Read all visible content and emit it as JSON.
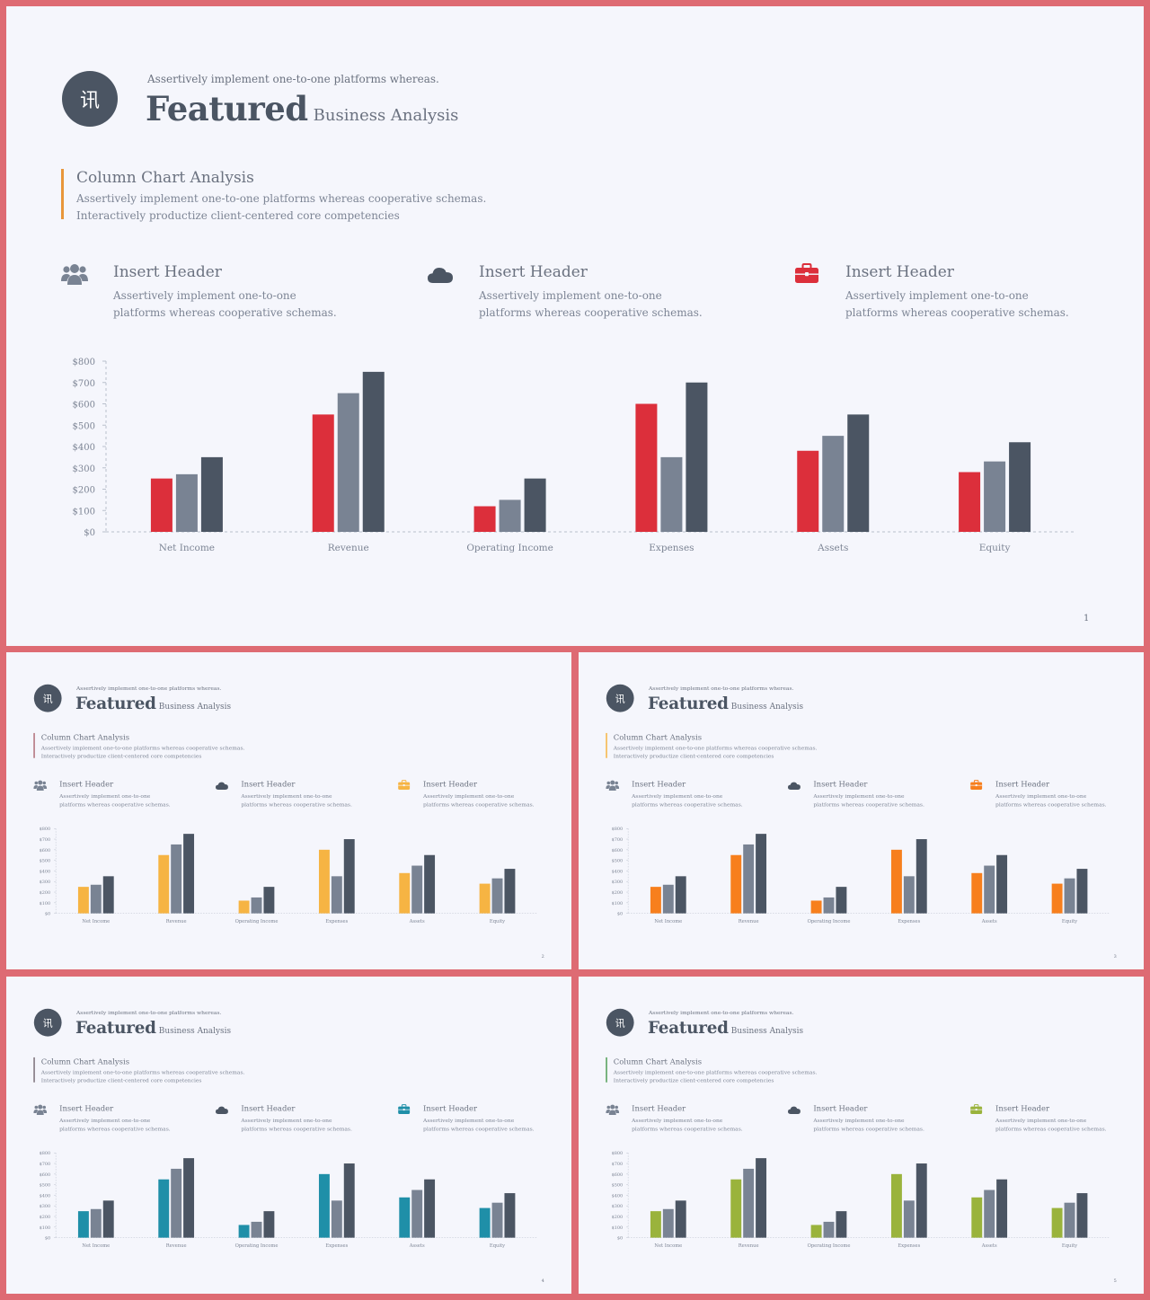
{
  "header": {
    "logo_glyph": "讯",
    "tagline": "Assertively implement one-to-one platforms whereas.",
    "title": "Featured",
    "subtitle": "Business Analysis"
  },
  "section": {
    "title": "Column Chart Analysis",
    "text": "Assertively implement one-to-one platforms whereas cooperative schemas. Interactively productize client-centered core competencies"
  },
  "features": [
    {
      "icon": "users-icon",
      "title": "Insert Header",
      "text": "Assertively implement one-to-one platforms whereas cooperative schemas."
    },
    {
      "icon": "cloud-icon",
      "title": "Insert Header",
      "text": "Assertively implement one-to-one platforms whereas cooperative schemas."
    },
    {
      "icon": "briefcase-icon",
      "title": "Insert Header",
      "text": "Assertively implement one-to-one platforms whereas cooperative schemas."
    }
  ],
  "slides": [
    {
      "page": "1",
      "accent": "#dc2f3b",
      "bar_color": "#dc2f3b",
      "section_border": "#e8963a"
    },
    {
      "page": "2",
      "accent": "#f6b443",
      "bar_color": "#f6b443",
      "section_border": "#b06e78"
    },
    {
      "page": "3",
      "accent": "#f77f1d",
      "bar_color": "#f77f1d",
      "section_border": "#f6b443"
    },
    {
      "page": "4",
      "accent": "#1f8fa8",
      "bar_color": "#1f8fa8",
      "section_border": "#7a6f78"
    },
    {
      "page": "5",
      "accent": "#9ab33c",
      "bar_color": "#9ab33c",
      "section_border": "#4f9f56"
    }
  ],
  "chart_data": {
    "type": "bar",
    "categories": [
      "Net Income",
      "Revenue",
      "Operating Income",
      "Expenses",
      "Assets",
      "Equity"
    ],
    "series": [
      {
        "values": [
          250,
          550,
          120,
          600,
          380,
          280
        ],
        "color": "accent"
      },
      {
        "values": [
          270,
          650,
          150,
          350,
          450,
          330
        ],
        "color": "#798393"
      },
      {
        "values": [
          350,
          750,
          250,
          700,
          550,
          420
        ],
        "color": "#4b5563"
      }
    ],
    "ylim": [
      0,
      800
    ],
    "yticks": [
      "$0",
      "$100",
      "$200",
      "$300",
      "$400",
      "$500",
      "$600",
      "$700",
      "$800"
    ],
    "ytick_values": [
      0,
      100,
      200,
      300,
      400,
      500,
      600,
      700,
      800
    ],
    "grid": false,
    "legend": "none"
  }
}
